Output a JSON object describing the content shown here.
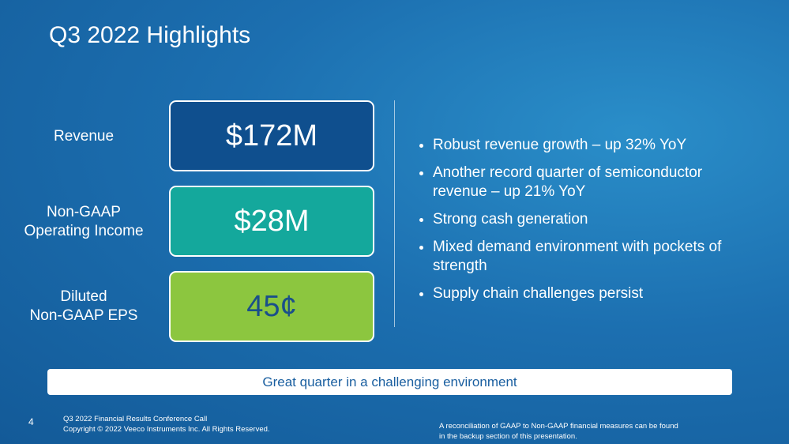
{
  "header": {
    "title": "Q3 2022 Highlights"
  },
  "metrics": [
    {
      "label_lines": [
        "Revenue"
      ],
      "value": "$172M"
    },
    {
      "label_lines": [
        "Non-GAAP",
        "Operating Income"
      ],
      "value": "$28M"
    },
    {
      "label_lines": [
        "Diluted",
        "Non-GAAP EPS"
      ],
      "value": "45¢"
    }
  ],
  "bullets": [
    "Robust revenue growth – up 32% YoY",
    "Another record quarter of semiconductor revenue – up 21% YoY",
    "Strong cash generation",
    "Mixed demand environment with pockets of strength",
    "Supply chain challenges persist"
  ],
  "banner": "Great quarter in a challenging environment",
  "footer": {
    "page": "4",
    "lines": [
      "Q3 2022 Financial Results Conference Call",
      "Copyright © 2022 Veeco Instruments Inc. All Rights Reserved."
    ],
    "note": "A reconciliation of GAAP to Non-GAAP financial measures can be found in the backup section of this presentation."
  }
}
